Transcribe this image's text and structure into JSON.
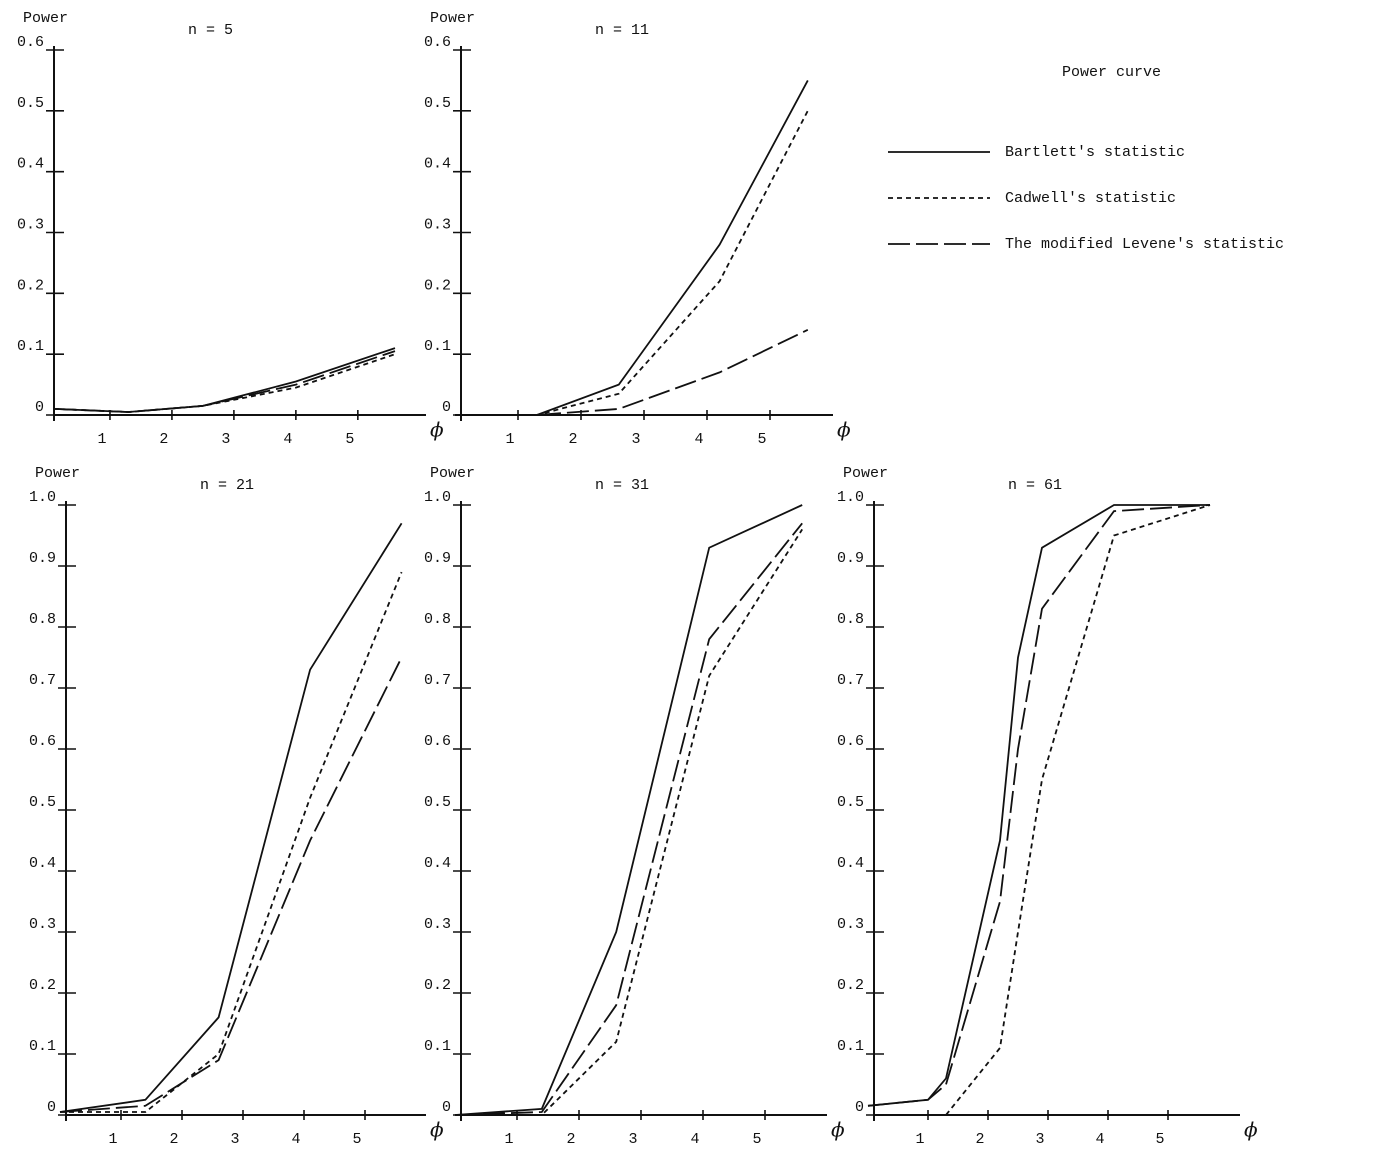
{
  "legend_title": "Power curve",
  "chart_data": [
    {
      "type": "line",
      "title": "n = 5",
      "y_label": "Power",
      "x_label": "ϕ",
      "x": [
        0.1,
        1.3,
        2.5,
        4,
        5.6
      ],
      "xlim": [
        0,
        6.1
      ],
      "xticks": [
        1,
        2,
        3,
        4,
        5
      ],
      "ylim": [
        0,
        0.6
      ],
      "yticks": [
        0,
        0.1,
        0.2,
        0.3,
        0.4,
        0.5,
        0.6
      ],
      "grid": false,
      "series": [
        {
          "name": "Bartlett's statistic",
          "color": "#111111",
          "dash": "solid",
          "values": [
            0.01,
            0.005,
            0.015,
            0.055,
            0.11
          ]
        },
        {
          "name": "Cadwell's statistic",
          "color": "#111111",
          "dash": "short",
          "values": [
            0.01,
            0.005,
            0.015,
            0.045,
            0.1
          ]
        },
        {
          "name": "The modified Levene's statistic",
          "color": "#111111",
          "dash": "long",
          "values": [
            0.01,
            0.005,
            0.015,
            0.05,
            0.105
          ]
        }
      ]
    },
    {
      "type": "line",
      "title": "n = 11",
      "y_label": "Power",
      "x_label": "ϕ",
      "x": [
        0,
        1.3,
        2.6,
        4.2,
        5.6
      ],
      "xlim": [
        0,
        6
      ],
      "xticks": [
        1,
        2,
        3,
        4,
        5
      ],
      "ylim": [
        0,
        0.6
      ],
      "yticks": [
        0,
        0.1,
        0.2,
        0.3,
        0.4,
        0.5,
        0.6
      ],
      "grid": false,
      "series": [
        {
          "color": "#111111",
          "dash": "solid",
          "values": [
            0,
            0,
            0.05,
            0.28,
            0.55
          ]
        },
        {
          "color": "#111111",
          "dash": "short",
          "values": [
            0,
            0,
            0.035,
            0.22,
            0.5
          ]
        },
        {
          "color": "#111111",
          "dash": "long",
          "values": [
            0,
            0,
            0.01,
            0.07,
            0.14
          ]
        }
      ]
    },
    {
      "type": "line",
      "title": "n = 21",
      "y_label": "Power",
      "x_label": "ϕ",
      "x": [
        0,
        1.4,
        2.6,
        4.1,
        5.6
      ],
      "xlim": [
        0,
        6
      ],
      "xticks": [
        1,
        2,
        3,
        4,
        5
      ],
      "ylim": [
        0,
        1
      ],
      "yticks": [
        0,
        0.1,
        0.2,
        0.3,
        0.4,
        0.5,
        0.6,
        0.7,
        0.8,
        0.9,
        {
          "value": 1,
          "label": "1.0"
        }
      ],
      "grid": false,
      "series": [
        {
          "color": "#111111",
          "dash": "solid",
          "values": [
            0.005,
            0.025,
            0.16,
            0.73,
            0.97
          ]
        },
        {
          "color": "#111111",
          "dash": "short",
          "values": [
            0.005,
            0.005,
            0.1,
            0.52,
            0.89
          ]
        },
        {
          "color": "#111111",
          "dash": "long",
          "values": [
            0.005,
            0.015,
            0.09,
            0.45,
            0.75
          ]
        }
      ]
    },
    {
      "type": "line",
      "title": "n = 31",
      "y_label": "Power",
      "x_label": "ϕ",
      "x": [
        0,
        1.4,
        2.6,
        4.1,
        5.6
      ],
      "xlim": [
        0,
        6
      ],
      "xticks": [
        1,
        2,
        3,
        4,
        5
      ],
      "ylim": [
        0,
        1
      ],
      "yticks": [
        0,
        0.1,
        0.2,
        0.3,
        0.4,
        0.5,
        0.6,
        0.7,
        0.8,
        0.9,
        {
          "value": 1,
          "label": "1.0"
        }
      ],
      "grid": false,
      "series": [
        {
          "color": "#111111",
          "dash": "solid",
          "values": [
            0,
            0.01,
            0.3,
            0.93,
            1
          ]
        },
        {
          "color": "#111111",
          "dash": "short",
          "values": [
            0,
            0,
            0.12,
            0.72,
            0.96
          ]
        },
        {
          "color": "#111111",
          "dash": "long",
          "values": [
            0,
            0.005,
            0.18,
            0.78,
            0.97
          ]
        }
      ]
    },
    {
      "type": "line",
      "title": "n = 61",
      "y_label": "Power",
      "x_label": "ϕ",
      "x": [
        0,
        1,
        1.3,
        2.2,
        2.5,
        2.9,
        4.1,
        5.7
      ],
      "xlim": [
        0,
        6.2
      ],
      "xticks": [
        1,
        2,
        3,
        4,
        5
      ],
      "ylim": [
        0,
        1
      ],
      "yticks": [
        0,
        0.1,
        0.2,
        0.3,
        0.4,
        0.5,
        0.6,
        0.7,
        0.8,
        0.9,
        {
          "value": 1,
          "label": "1.0"
        }
      ],
      "grid": false,
      "series": [
        {
          "color": "#111111",
          "dash": "solid",
          "values": [
            0.015,
            0.025,
            0.06,
            0.45,
            0.75,
            0.93,
            1,
            1
          ]
        },
        {
          "color": "#111111",
          "dash": "short",
          "values": [
            null,
            null,
            0,
            0.11,
            0.3,
            0.55,
            0.95,
            1
          ]
        },
        {
          "color": "#111111",
          "dash": "long",
          "values": [
            0.015,
            0.025,
            0.05,
            0.35,
            0.6,
            0.83,
            0.99,
            1
          ]
        }
      ]
    }
  ]
}
